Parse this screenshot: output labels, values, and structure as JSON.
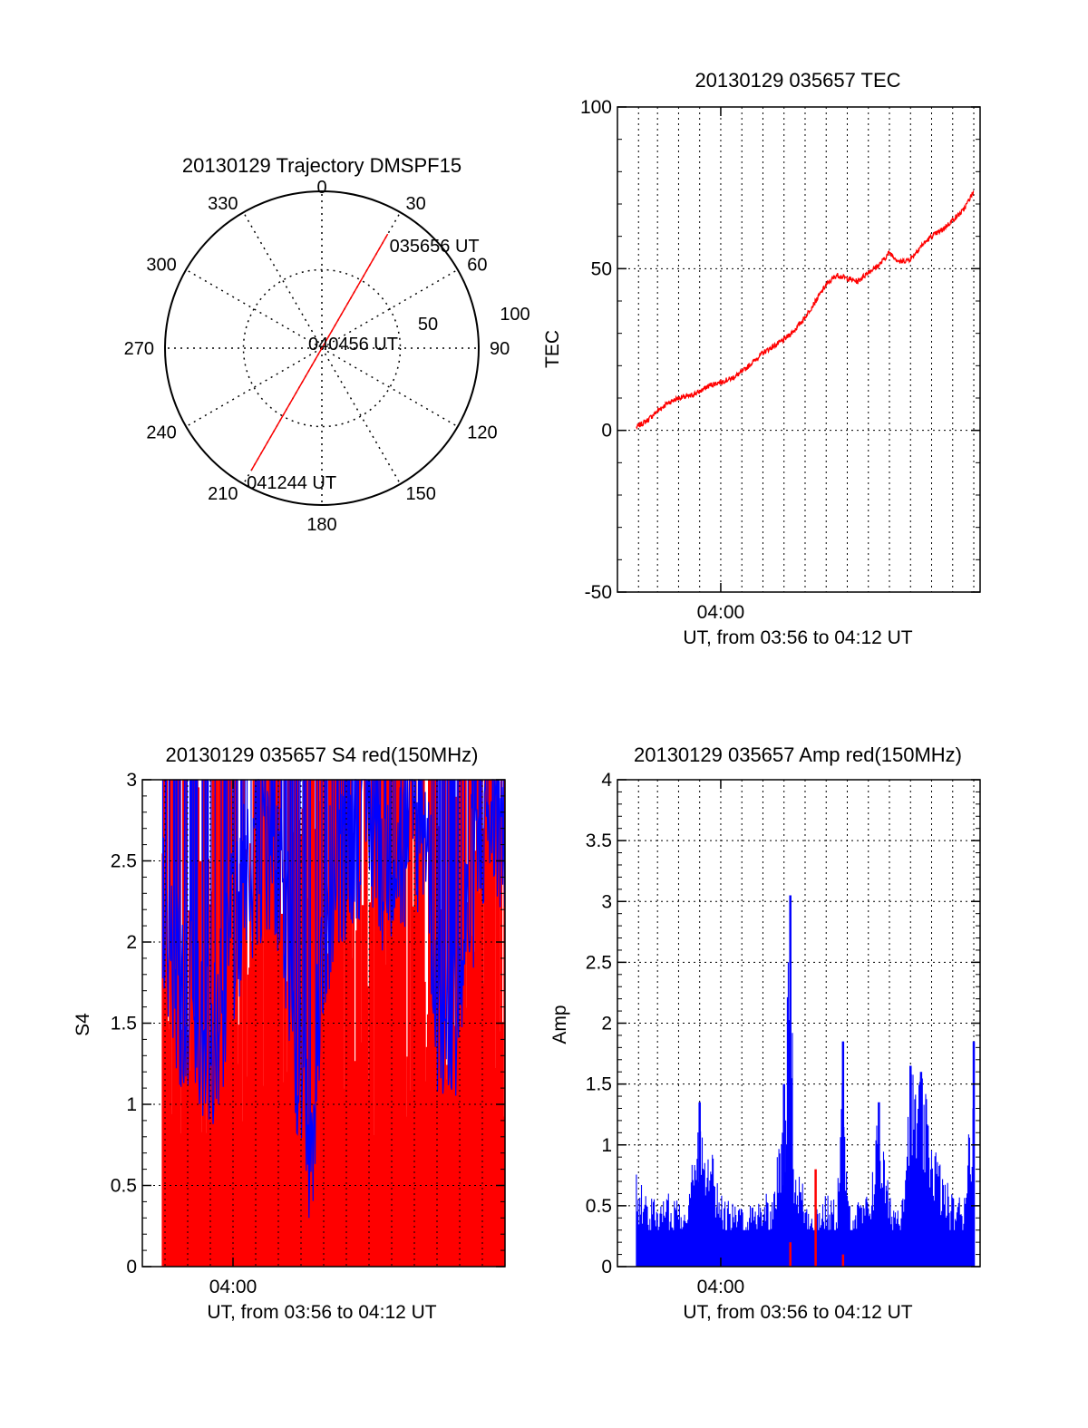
{
  "colors": {
    "red": "#ff0000",
    "blue": "#0000ff",
    "axis": "#000000",
    "background": "#ffffff"
  },
  "chart_data": [
    {
      "id": "trajectory",
      "type": "polar",
      "title": "20130129 Trajectory DMSPF15",
      "angle_ticks": [
        "0",
        "30",
        "60",
        "90",
        "120",
        "150",
        "180",
        "210",
        "240",
        "270",
        "300",
        "330"
      ],
      "radial_ticks": [
        "50",
        "100"
      ],
      "rlim": [
        0,
        100
      ],
      "grid": true,
      "series": [
        {
          "color": "red",
          "points": [
            {
              "az": 30,
              "r": 84
            },
            {
              "az": 210,
              "r": 90
            }
          ]
        }
      ],
      "annotations": [
        {
          "text": "035656 UT",
          "az": 30,
          "r": 84
        },
        {
          "text": "040456 UT",
          "az": 0,
          "r": 0
        },
        {
          "text": "041244 UT",
          "az": 210,
          "r": 90
        }
      ]
    },
    {
      "id": "tec",
      "type": "line",
      "title": "20130129 035657 TEC",
      "ylabel": "TEC",
      "xlabel": "UT, from 03:56 to 04:12 UT",
      "x_tick_labels": [
        {
          "min": 4.0,
          "label": "04:00"
        }
      ],
      "xlim": [
        -0.9,
        16.3
      ],
      "ylim": [
        -50,
        100
      ],
      "yticks": [
        "-50",
        "0",
        "50",
        "100"
      ],
      "xgrid_minutes": [
        0.1,
        1,
        2,
        3,
        4,
        5,
        6,
        7,
        8,
        9,
        10,
        11,
        12,
        13,
        14,
        15,
        16
      ],
      "grid": true,
      "series": [
        {
          "color": "red",
          "x": [
            0.0,
            0.5,
            1.0,
            1.5,
            2.0,
            2.5,
            3.0,
            3.5,
            4.0,
            4.5,
            5.0,
            5.5,
            6.0,
            6.5,
            7.0,
            7.5,
            8.0,
            8.5,
            9.0,
            9.5,
            10.0,
            10.5,
            11.0,
            11.5,
            12.0,
            12.5,
            13.0,
            13.5,
            14.0,
            14.5,
            15.0,
            15.5,
            16.0
          ],
          "y": [
            1,
            3,
            6,
            8.5,
            10,
            10.5,
            12,
            14,
            15,
            16,
            18,
            21,
            24,
            26,
            28,
            31,
            35,
            40,
            45,
            48,
            47,
            46,
            49,
            51,
            55,
            52,
            53,
            57,
            60,
            62,
            65,
            68,
            74
          ]
        }
      ]
    },
    {
      "id": "s4",
      "type": "bar",
      "title": "20130129 035657 S4 red(150MHz)",
      "ylabel": "S4",
      "xlabel": "UT, from 03:56 to 04:12 UT",
      "x_tick_labels": [
        {
          "min": 4.0,
          "label": "04:00"
        }
      ],
      "xlim": [
        0.0,
        16.0
      ],
      "ylim": [
        0,
        3
      ],
      "yticks": [
        "0",
        "0.5",
        "1",
        "1.5",
        "2",
        "2.5",
        "3"
      ],
      "xgrid_minutes": [
        1,
        2,
        3,
        4,
        5,
        6,
        7,
        8,
        9,
        10,
        11,
        12,
        13,
        14,
        15
      ],
      "grid": true,
      "series": [
        {
          "color": "red",
          "description_values": "dense spikes from 0 to 3"
        },
        {
          "color": "blue",
          "x": [
            0.0,
            0.5,
            1.0,
            1.5,
            2.0,
            2.5,
            3.0,
            3.5,
            4.0,
            4.5,
            5.0,
            5.5,
            6.0,
            6.5,
            7.0,
            7.5,
            8.0,
            8.5,
            9.0,
            9.5,
            10.0,
            10.5,
            11.0,
            11.5,
            12.0,
            12.5,
            13.0,
            13.5,
            14.0,
            14.5,
            15.0,
            15.5,
            16.0
          ],
          "y": [
            1.9,
            2.3,
            2.0,
            1.6,
            1.5,
            1.4,
            1.3,
            1.4,
            1.9,
            2.2,
            2.4,
            2.5,
            2.2,
            1.8,
            1.0,
            0.6,
            2.0,
            2.3,
            2.5,
            2.6,
            2.7,
            2.4,
            2.5,
            2.4,
            2.6,
            2.7,
            1.5,
            1.35,
            1.6,
            2.2,
            2.6,
            2.7,
            2.5
          ]
        }
      ]
    },
    {
      "id": "amp",
      "type": "bar",
      "title": "20130129 035657 Amp red(150MHz)",
      "ylabel": "Amp",
      "xlabel": "UT, from 03:56 to 04:12 UT",
      "x_tick_labels": [
        {
          "min": 4.0,
          "label": "04:00"
        }
      ],
      "xlim": [
        -0.9,
        16.3
      ],
      "ylim": [
        0,
        4
      ],
      "yticks": [
        "0",
        "0.5",
        "1",
        "1.5",
        "2",
        "2.5",
        "3",
        "3.5",
        "4"
      ],
      "xgrid_minutes": [
        0.1,
        1,
        2,
        3,
        4,
        5,
        6,
        7,
        8,
        9,
        10,
        11,
        12,
        13,
        14,
        15,
        16
      ],
      "grid": true,
      "series": [
        {
          "color": "blue",
          "x": [
            0.0,
            0.5,
            1.0,
            1.5,
            2.0,
            2.5,
            3.0,
            3.5,
            4.0,
            4.5,
            5.0,
            5.5,
            6.0,
            6.5,
            7.0,
            7.3,
            7.5,
            7.8,
            8.0,
            8.5,
            9.0,
            9.5,
            9.8,
            10.0,
            10.5,
            11.0,
            11.5,
            12.0,
            12.5,
            13.0,
            13.5,
            14.0,
            14.5,
            15.0,
            15.5,
            16.0
          ],
          "y": [
            0.8,
            0.6,
            0.55,
            0.6,
            0.6,
            0.7,
            1.35,
            1.2,
            0.6,
            0.55,
            0.5,
            0.55,
            0.65,
            0.6,
            1.5,
            3.05,
            0.9,
            0.8,
            0.6,
            0.55,
            0.6,
            0.55,
            1.85,
            0.6,
            0.55,
            0.6,
            1.35,
            0.6,
            0.55,
            1.65,
            1.6,
            1.2,
            0.8,
            0.6,
            0.6,
            1.85
          ]
        },
        {
          "color": "red",
          "x": [
            7.3,
            8.5,
            9.8
          ],
          "y": [
            0.2,
            0.8,
            0.1
          ]
        }
      ]
    }
  ]
}
